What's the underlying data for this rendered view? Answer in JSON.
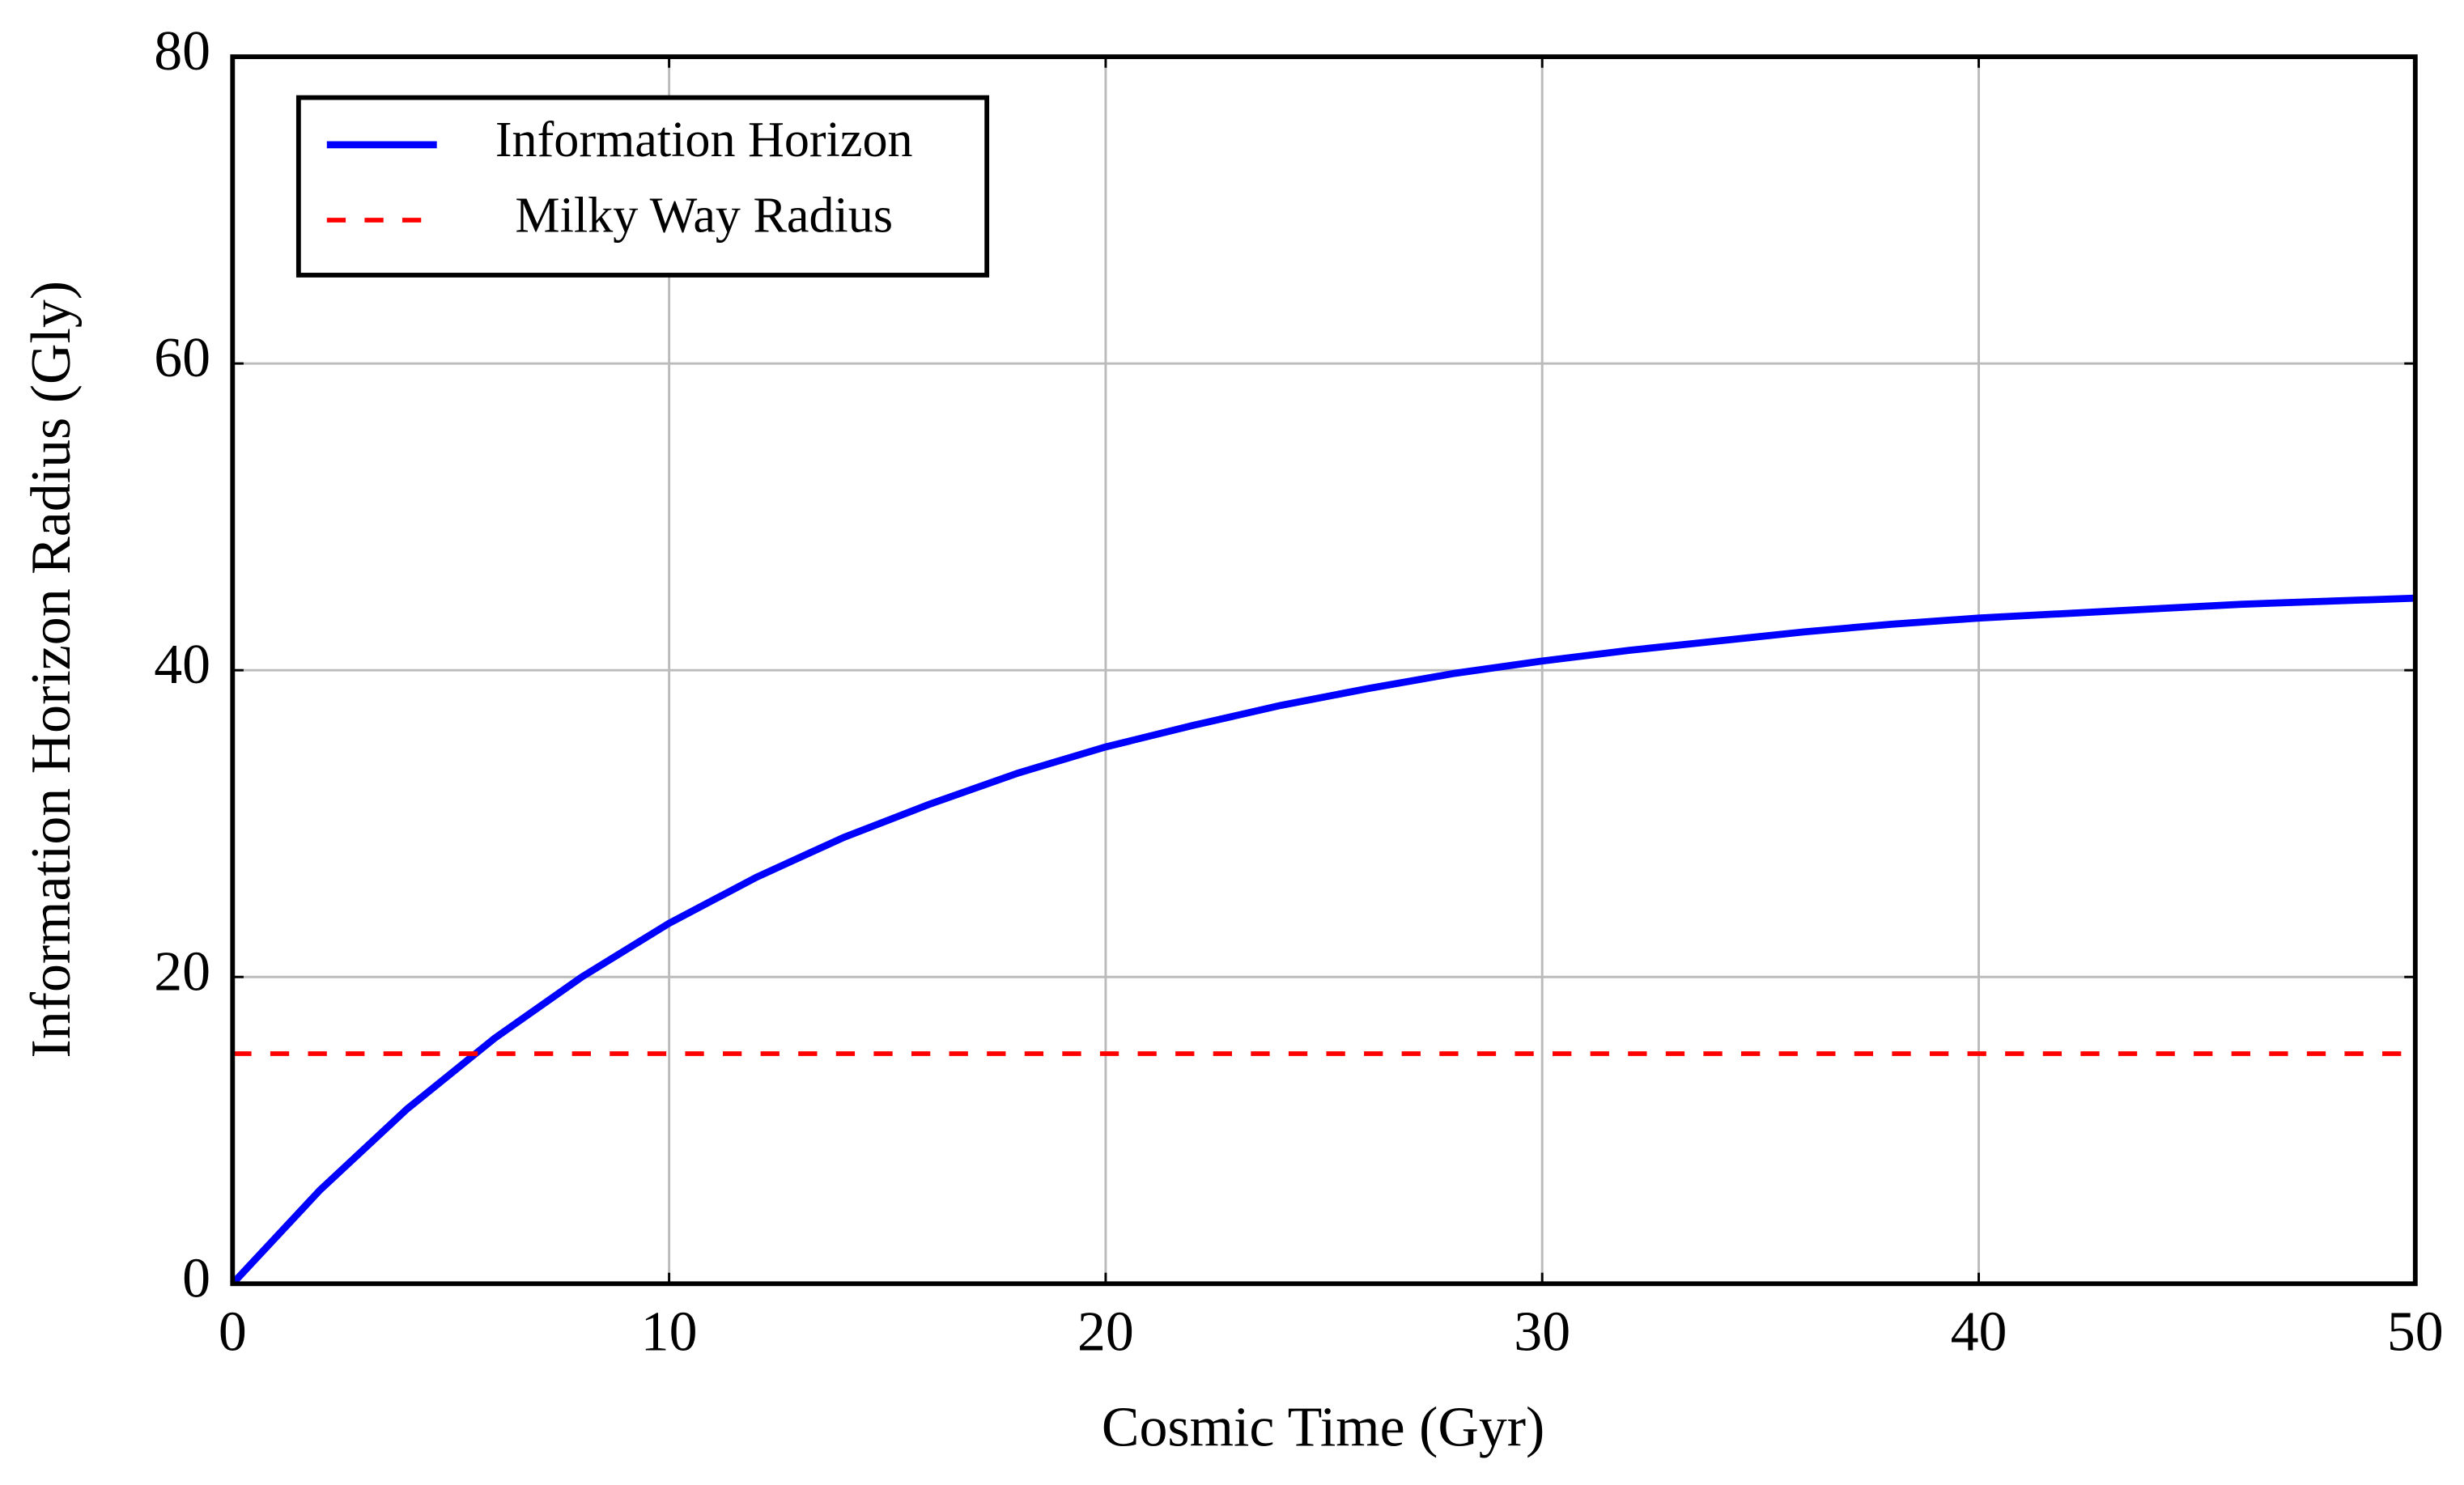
{
  "chart_data": {
    "type": "line",
    "xlabel": "Cosmic Time (Gyr)",
    "ylabel": "Information Horizon Radius (Gly)",
    "xlim": [
      0,
      50
    ],
    "xticks": [
      0,
      10,
      20,
      30,
      40,
      50
    ],
    "ylim": [
      0,
      80
    ],
    "yticks": [
      0,
      20,
      40,
      60,
      80
    ],
    "grid": true,
    "legend": "upper left",
    "series": [
      {
        "name": "Information Horizon",
        "color": "#0000ff",
        "dashed": false,
        "x": [
          0,
          2,
          4,
          6,
          8,
          10,
          12,
          14,
          16,
          18,
          20,
          22,
          24,
          26,
          28,
          30,
          32,
          34,
          36,
          38,
          40,
          42,
          44,
          46,
          48,
          50
        ],
        "values": [
          0,
          6.1,
          11.4,
          16.0,
          20.0,
          23.5,
          26.5,
          29.1,
          31.3,
          33.3,
          35.0,
          36.4,
          37.7,
          38.8,
          39.8,
          40.6,
          41.3,
          41.9,
          42.5,
          43.0,
          43.4,
          43.7,
          44.0,
          44.3,
          44.5,
          44.7
        ]
      },
      {
        "name": "Milky Way Radius",
        "color": "#ff0000",
        "dashed": true,
        "x": [
          0,
          50
        ],
        "values": [
          15,
          15
        ]
      }
    ]
  }
}
